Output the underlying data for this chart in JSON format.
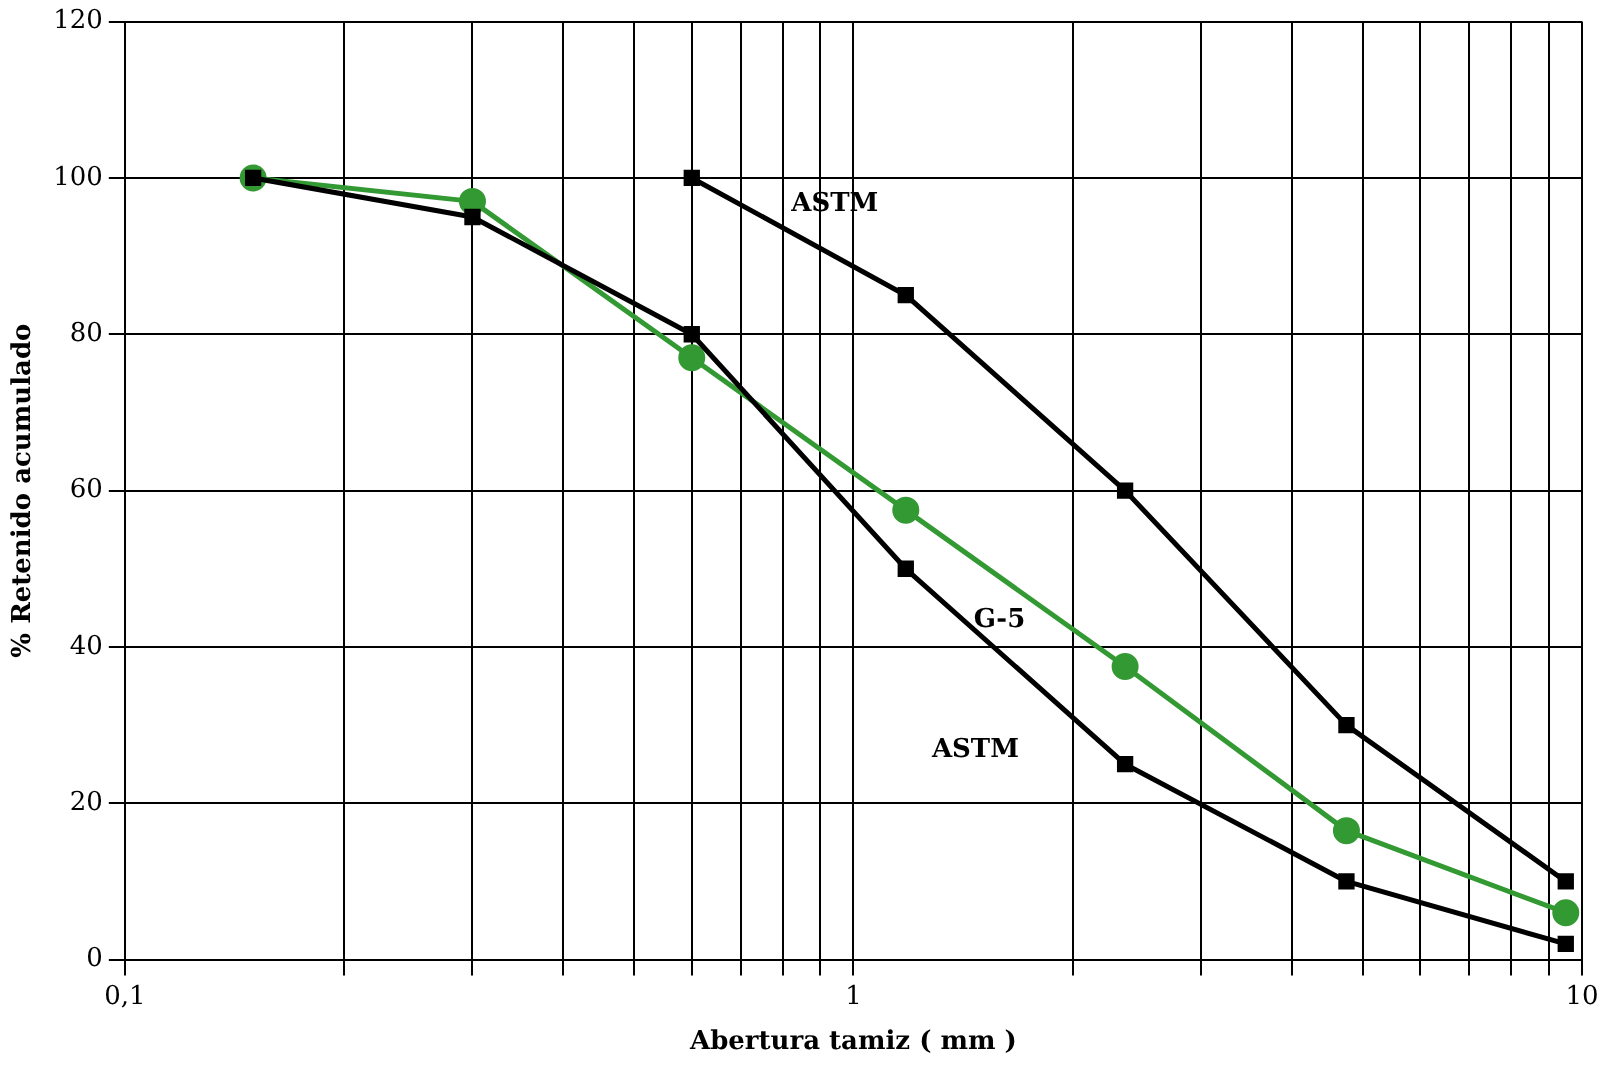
{
  "chart_data": {
    "type": "line",
    "xlabel": "Abertura tamiz ( mm )",
    "ylabel": "% Retenido acumulado",
    "log": "x",
    "grid": true,
    "legend": false,
    "xlim": [
      0.1,
      10
    ],
    "xticks": [
      {
        "value": 0.1,
        "label": "0,1"
      },
      {
        "value": 0.2,
        "label": null
      },
      {
        "value": 0.3,
        "label": null
      },
      {
        "value": 0.4,
        "label": null
      },
      {
        "value": 0.5,
        "label": null
      },
      {
        "value": 0.6,
        "label": null
      },
      {
        "value": 0.7,
        "label": null
      },
      {
        "value": 0.8,
        "label": null
      },
      {
        "value": 0.9,
        "label": null
      },
      1,
      {
        "value": 2,
        "label": null
      },
      {
        "value": 3,
        "label": null
      },
      {
        "value": 4,
        "label": null
      },
      {
        "value": 5,
        "label": null
      },
      {
        "value": 6,
        "label": null
      },
      {
        "value": 7,
        "label": null
      },
      {
        "value": 8,
        "label": null
      },
      {
        "value": 9,
        "label": null
      },
      10
    ],
    "ylim": [
      0,
      120
    ],
    "yticks": [
      0,
      20,
      40,
      60,
      80,
      100,
      120
    ],
    "series": [
      {
        "name": "ASTM",
        "color": "#000000",
        "marker": "square",
        "x": [
          0.6,
          1.18,
          2.36,
          4.75,
          9.5
        ],
        "values": [
          100,
          85,
          60,
          30,
          10
        ]
      },
      {
        "name": "ASTM",
        "color": "#000000",
        "marker": "square",
        "x": [
          0.15,
          0.3,
          0.6,
          1.18,
          2.36,
          4.75,
          9.5
        ],
        "values": [
          100,
          95,
          80,
          50,
          25,
          10,
          2
        ]
      },
      {
        "name": "G-5",
        "color": "#339933",
        "marker": "circle",
        "x": [
          0.15,
          0.3,
          0.6,
          1.18,
          2.36,
          4.75,
          9.5
        ],
        "values": [
          100,
          97,
          77,
          57.5,
          37.5,
          16.5,
          6
        ]
      }
    ]
  }
}
